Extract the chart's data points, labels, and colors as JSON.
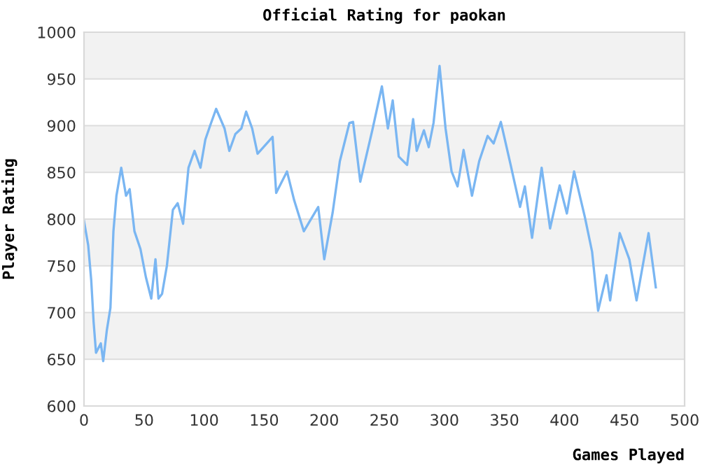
{
  "chart_data": {
    "type": "line",
    "title": "Official Rating for paokan",
    "xlabel": "Games Played",
    "ylabel": "Player Rating",
    "xlim": [
      0,
      500
    ],
    "ylim": [
      600,
      1000
    ],
    "xticks": [
      0,
      50,
      100,
      150,
      200,
      250,
      300,
      350,
      400,
      450,
      500
    ],
    "yticks": [
      600,
      650,
      700,
      750,
      800,
      850,
      900,
      950,
      1000
    ],
    "grid": "y",
    "legend": false,
    "series": [
      {
        "color": "#7ab6f2",
        "x": [
          0,
          3.5,
          6,
          8,
          10,
          14,
          16,
          19,
          22,
          24.5,
          27,
          31,
          35,
          38,
          42,
          47,
          51.5,
          56,
          59.5,
          62,
          65,
          69,
          74,
          78,
          82.5,
          87,
          92,
          97,
          101,
          105,
          110,
          117,
          121,
          126,
          131,
          135,
          140,
          144.5,
          157,
          160,
          169,
          175,
          183,
          195,
          200,
          207,
          213,
          221,
          224,
          230,
          240,
          248,
          253,
          257,
          262,
          269,
          274,
          277,
          283,
          287,
          291,
          296,
          301,
          306,
          311,
          316,
          323,
          329,
          336,
          341,
          347,
          355,
          363,
          367,
          373,
          381,
          388,
          396,
          402,
          408,
          417,
          423,
          428,
          435,
          438,
          446,
          454,
          460,
          470,
          476
        ],
        "values": [
          798,
          772,
          735,
          690,
          657,
          667,
          648,
          681,
          705,
          787,
          825,
          855,
          825,
          832,
          787,
          768,
          738,
          715,
          757,
          715,
          720,
          750,
          810,
          817,
          795,
          855,
          873,
          855,
          885,
          900,
          918,
          897,
          873,
          891,
          897,
          915,
          897,
          870,
          888,
          828,
          851,
          820,
          787,
          813,
          757,
          807,
          862,
          903,
          904,
          840,
          895,
          942,
          897,
          927,
          867,
          858,
          907,
          873,
          895,
          877,
          903,
          964,
          897,
          851,
          835,
          874,
          825,
          862,
          889,
          881,
          904,
          859,
          813,
          835,
          780,
          855,
          790,
          836,
          806,
          851,
          802,
          765,
          702,
          740,
          713,
          785,
          757,
          713,
          785,
          727
        ]
      }
    ]
  }
}
